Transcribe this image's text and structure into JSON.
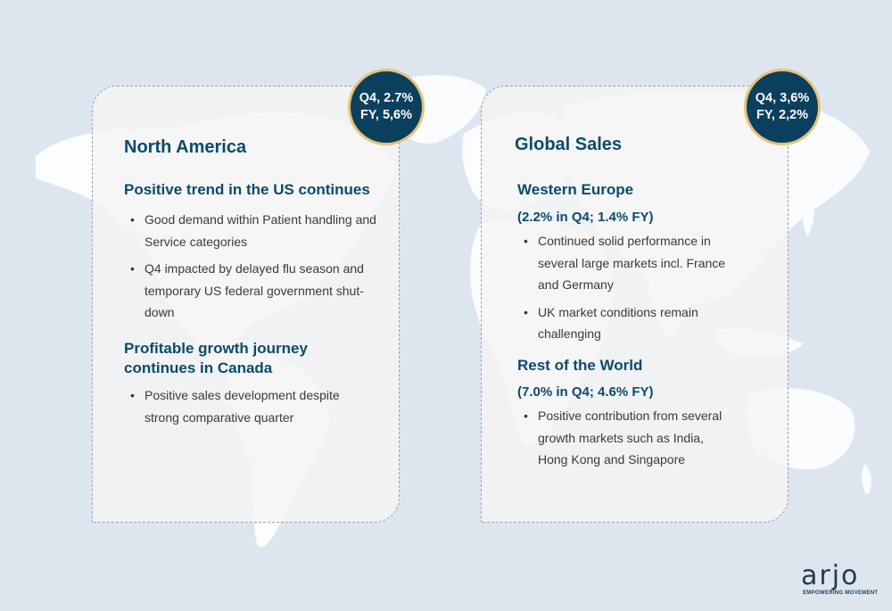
{
  "colors": {
    "background": "#dde6ef",
    "map": "#ffffff",
    "title": "#0b4a6e",
    "badge_fill": "#0b3f5e",
    "badge_ring": "#e5c27a",
    "body_text": "#3a3a3a"
  },
  "north_america": {
    "badge": {
      "line1": "Q4, 2.7%",
      "line2": "FY, 5,6%"
    },
    "title": "North America",
    "section1": {
      "heading": "Positive trend in the US continues",
      "bullets": [
        "Good demand within Patient handling and Service categories",
        "Q4 impacted by delayed flu season and temporary US federal government shut-down"
      ]
    },
    "section2": {
      "heading_line1": "Profitable growth journey",
      "heading_line2": "continues in Canada",
      "bullets": [
        "Positive sales development despite strong comparative quarter"
      ]
    }
  },
  "global_sales": {
    "badge": {
      "line1": "Q4, 3,6%",
      "line2": "FY, 2,2%"
    },
    "title": "Global Sales",
    "western_europe": {
      "heading": "Western Europe",
      "subheading": "(2.2% in Q4; 1.4% FY)",
      "bullets": [
        "Continued solid performance in several large markets incl. France and Germany",
        "UK market conditions remain challenging"
      ]
    },
    "rest_of_world": {
      "heading": "Rest of the World",
      "subheading": "(7.0% in Q4; 4.6% FY)",
      "bullets": [
        "Positive contribution from several growth markets such as India, Hong Kong and Singapore"
      ]
    }
  },
  "logo": {
    "wordmark": "arjo",
    "tagline": "EMPOWERING MOVEMENT"
  }
}
